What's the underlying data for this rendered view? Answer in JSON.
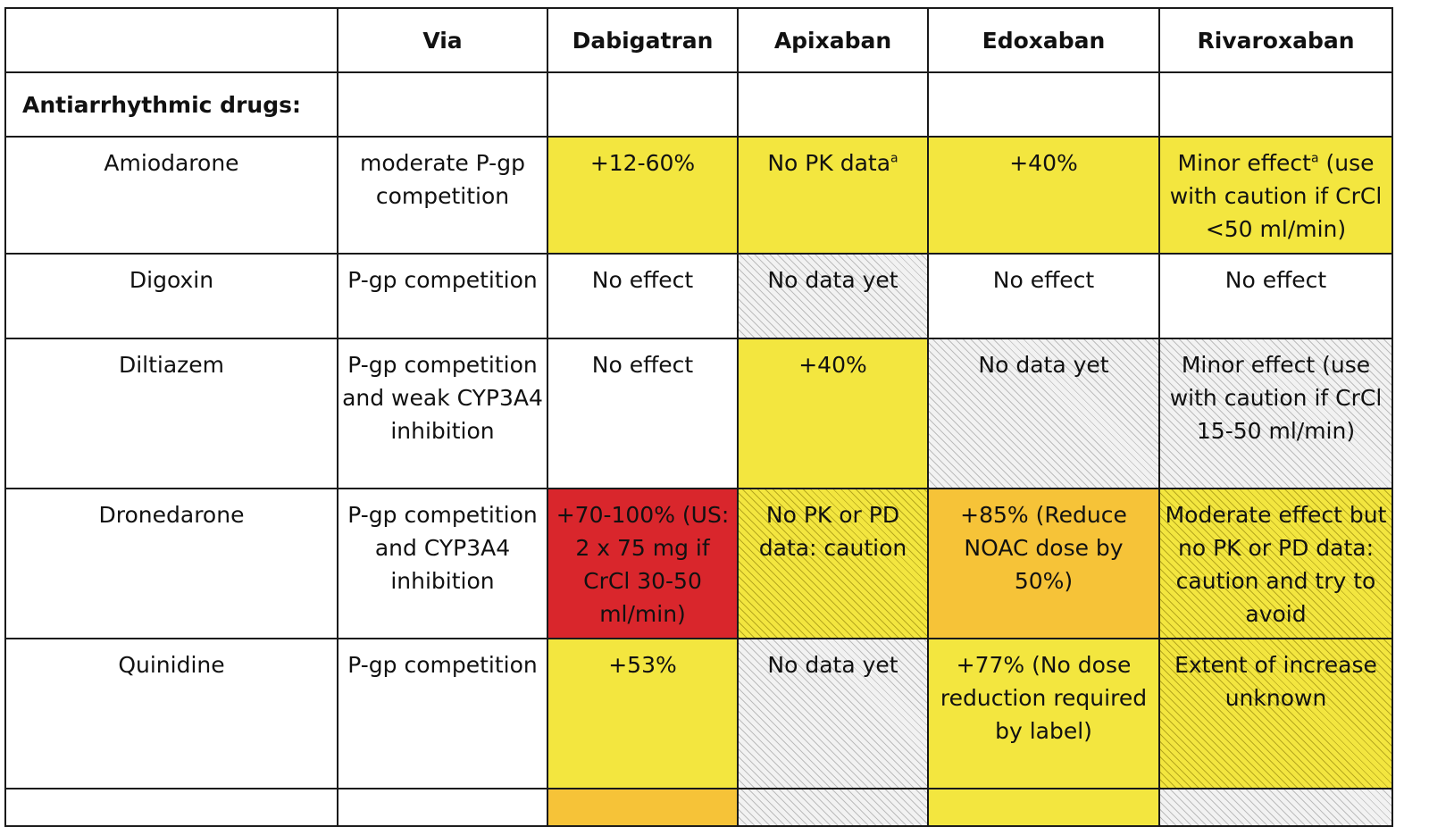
{
  "headers": [
    "",
    "Via",
    "Dabigatran",
    "Apixaban",
    "Edoxaban",
    "Rivaroxaban"
  ],
  "section_label": "Antiarrhythmic drugs:",
  "rows": [
    {
      "drug": "Amiodarone",
      "via": "moderate P-gp competition",
      "dabigatran": "+12-60%",
      "apixaban": "No PK data",
      "apixaban_sup": "a",
      "edoxaban": "+40%",
      "rivaroxaban_pre": "Minor effect",
      "rivaroxaban_sup": "a",
      "rivaroxaban_post": " (use with caution if CrCl <50 ml/min)"
    },
    {
      "drug": "Digoxin",
      "via": "P-gp competition",
      "dabigatran": "No effect",
      "apixaban": "No data  yet",
      "edoxaban": "No effect",
      "rivaroxaban": "No effect"
    },
    {
      "drug": "Diltiazem",
      "via": "P-gp competition and weak CYP3A4 inhibition",
      "dabigatran": "No effect",
      "apixaban": "+40%",
      "edoxaban": "No data yet",
      "rivaroxaban": "Minor effect (use with caution if CrCl 15-50 ml/min)"
    },
    {
      "drug": "Dronedarone",
      "via": "P-gp competition and CYP3A4 inhibition",
      "dabigatran": "+70-100% (US: 2 x 75 mg if CrCl 30-50 ml/min)",
      "apixaban": "No PK or PD data: caution",
      "edoxaban": "+85% (Reduce NOAC dose by 50%)",
      "rivaroxaban": "Moderate effect but no PK or PD data: caution and try to avoid"
    },
    {
      "drug": "Quinidine",
      "via": "P-gp competition",
      "dabigatran": "+53%",
      "apixaban": "No data yet",
      "edoxaban": "+77% (No dose reduction required by label)",
      "rivaroxaban": "Extent of increase unknown"
    }
  ],
  "colors": {
    "yellow": "#f3e63f",
    "red": "#d9262c",
    "orange": "#f6c338",
    "grey_hatched": "#f2f2f2"
  }
}
